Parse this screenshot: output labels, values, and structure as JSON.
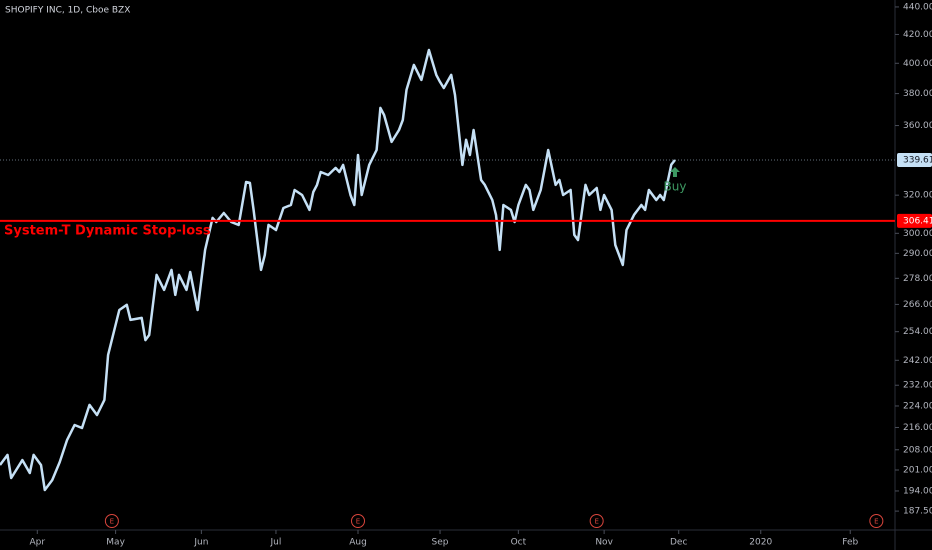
{
  "chart_data": {
    "type": "line",
    "title": "SHOPIFY INC, 1D, Cboe BZX",
    "log_scale": true,
    "background": "#000000",
    "x": [
      0,
      2,
      3,
      6,
      8,
      9,
      11,
      12,
      14,
      16,
      18,
      20,
      22,
      24,
      26,
      28,
      29,
      32,
      34,
      35,
      38,
      39,
      40,
      42,
      44,
      46,
      47,
      48,
      50,
      51,
      53,
      55,
      57,
      58,
      60,
      62,
      64,
      66,
      67,
      68,
      70,
      71,
      72,
      74,
      76,
      78,
      79,
      81,
      83,
      84,
      85,
      86,
      88,
      90,
      91,
      92,
      94,
      95,
      96,
      97,
      99,
      101,
      102,
      103,
      105,
      107,
      108,
      109,
      111,
      113,
      115,
      117,
      118,
      119,
      121,
      122,
      124,
      125,
      126,
      127,
      129,
      130,
      132,
      133,
      134,
      135,
      137,
      138,
      139,
      141,
      142,
      143,
      145,
      146,
      147,
      149,
      150,
      151,
      153,
      154,
      155,
      157,
      158,
      160,
      161,
      162,
      164,
      165,
      167,
      168,
      170,
      172,
      173,
      174,
      176,
      177,
      178,
      180,
      181
    ],
    "series": [
      {
        "color": "#c5e0f5",
        "values": [
          202.7,
          206.2,
          198.3,
          204.4,
          200.0,
          206.2,
          202.7,
          194.3,
          197.6,
          203.7,
          211.5,
          216.9,
          215.8,
          224.4,
          220.6,
          226.3,
          244.2,
          263.5,
          265.8,
          259.1,
          260.0,
          250.4,
          252.6,
          279.6,
          272.6,
          282.0,
          270.3,
          279.6,
          272.6,
          281.0,
          263.5,
          291.7,
          307.9,
          305.8,
          310.5,
          305.8,
          304.3,
          327.2,
          326.7,
          312.1,
          282.0,
          289.2,
          304.3,
          301.7,
          313.1,
          314.7,
          322.8,
          320.1,
          312.1,
          321.7,
          325.6,
          332.8,
          331.1,
          335.1,
          332.8,
          336.8,
          320.1,
          314.7,
          342.5,
          320.1,
          336.8,
          345.4,
          370.9,
          366.5,
          350.2,
          357.3,
          363.4,
          382.4,
          398.9,
          388.9,
          409.1,
          392.2,
          387.6,
          383.6,
          392.2,
          379.1,
          336.8,
          351.4,
          342.5,
          357.3,
          328.3,
          325.6,
          317.4,
          309.5,
          291.7,
          314.7,
          312.1,
          305.8,
          314.7,
          325.6,
          322.8,
          312.1,
          322.8,
          334.0,
          345.4,
          325.6,
          328.3,
          320.1,
          322.8,
          299.2,
          296.6,
          325.6,
          320.1,
          323.9,
          312.1,
          320.1,
          312.1,
          294.1,
          284.4,
          301.7,
          309.5,
          314.7,
          312.1,
          322.8,
          317.4,
          320.1,
          317.4,
          337.0,
          339.61
        ]
      }
    ],
    "xlim": [
      0,
      240
    ],
    "xticks": [
      {
        "value": 10,
        "label": "Apr"
      },
      {
        "value": 31,
        "label": "May"
      },
      {
        "value": 54,
        "label": "Jun"
      },
      {
        "value": 74,
        "label": "Jul"
      },
      {
        "value": 96,
        "label": "Aug"
      },
      {
        "value": 118,
        "label": "Sep"
      },
      {
        "value": 139,
        "label": "Oct"
      },
      {
        "value": 162,
        "label": "Nov"
      },
      {
        "value": 182,
        "label": "Dec"
      },
      {
        "value": 204,
        "label": "2020"
      },
      {
        "value": 228,
        "label": "Feb"
      }
    ],
    "ylim": [
      181.6,
      445.2
    ],
    "yticks": [
      {
        "value": 440,
        "label": "440.00"
      },
      {
        "value": 420,
        "label": "420.00"
      },
      {
        "value": 400,
        "label": "400.00"
      },
      {
        "value": 380,
        "label": "380.00"
      },
      {
        "value": 360,
        "label": "360.00"
      },
      {
        "value": 320,
        "label": "320.00"
      },
      {
        "value": 300,
        "label": "300.00"
      },
      {
        "value": 290,
        "label": "290.00"
      },
      {
        "value": 278,
        "label": "278.00"
      },
      {
        "value": 266,
        "label": "266.00"
      },
      {
        "value": 254,
        "label": "254.00"
      },
      {
        "value": 242,
        "label": "242.00"
      },
      {
        "value": 232,
        "label": "232.00"
      },
      {
        "value": 224,
        "label": "224.00"
      },
      {
        "value": 216,
        "label": "216.00"
      },
      {
        "value": 208,
        "label": "208.00"
      },
      {
        "value": 201,
        "label": "201.00"
      },
      {
        "value": 194,
        "label": "194.00"
      },
      {
        "value": 187.5,
        "label": "187.50"
      }
    ],
    "hlines": [
      {
        "value": 306.41,
        "label": "System-T Dynamic Stop-loss",
        "color": "#ff0000"
      }
    ],
    "annotations": [
      {
        "text": "Buy",
        "x": 181,
        "color": "#3e9a63"
      }
    ],
    "earnings": {
      "label": "E",
      "x": [
        30,
        96,
        160,
        235
      ],
      "color": "#d9453c"
    }
  }
}
